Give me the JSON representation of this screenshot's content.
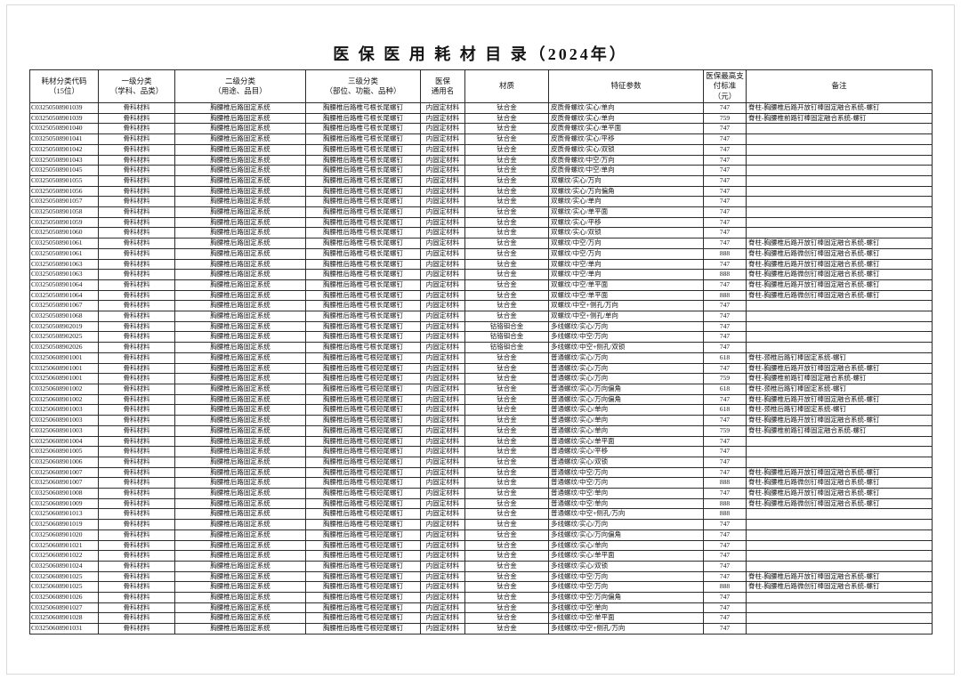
{
  "page": {
    "title": "医 保 医 用 耗 材 目 录（2024年）"
  },
  "table": {
    "columns": [
      {
        "key": "code",
        "label": "耗材分类代码\n（15位）"
      },
      {
        "key": "category-level1",
        "label": "一级分类\n（学科、品类）"
      },
      {
        "key": "category-level2",
        "label": "二级分类\n（用途、品目）"
      },
      {
        "key": "category-level3",
        "label": "三级分类\n（部位、功能、品种）"
      },
      {
        "key": "common-name",
        "label": "医保\n通用名"
      },
      {
        "key": "material",
        "label": "材质"
      },
      {
        "key": "feature-params",
        "label": "特征参数"
      },
      {
        "key": "max-pay-standard",
        "label": "医保最高支\n付标准\n（元）"
      },
      {
        "key": "remark",
        "label": "备注"
      }
    ],
    "rows": [
      [
        "C03250508901039",
        "骨科材料",
        "胸腰椎后路固定系统",
        "胸腰椎后路椎弓根长尾螺钉",
        "内固定材料",
        "钛合金",
        "皮质骨螺纹/实心/单向",
        "747",
        "脊柱-胸腰椎后路开放钉棒固定融合系统-螺钉"
      ],
      [
        "C03250508901039",
        "骨科材料",
        "胸腰椎后路固定系统",
        "胸腰椎后路椎弓根长尾螺钉",
        "内固定材料",
        "钛合金",
        "皮质骨螺纹/实心/单向",
        "759",
        "脊柱-胸腰椎前路钉棒固定融合系统-螺钉"
      ],
      [
        "C03250508901040",
        "骨科材料",
        "胸腰椎后路固定系统",
        "胸腰椎后路椎弓根长尾螺钉",
        "内固定材料",
        "钛合金",
        "皮质骨螺纹/实心/单平面",
        "747",
        ""
      ],
      [
        "C03250508901041",
        "骨科材料",
        "胸腰椎后路固定系统",
        "胸腰椎后路椎弓根长尾螺钉",
        "内固定材料",
        "钛合金",
        "皮质骨螺纹/实心/平移",
        "747",
        ""
      ],
      [
        "C03250508901042",
        "骨科材料",
        "胸腰椎后路固定系统",
        "胸腰椎后路椎弓根长尾螺钉",
        "内固定材料",
        "钛合金",
        "皮质骨螺纹/实心/双锁",
        "747",
        ""
      ],
      [
        "C03250508901043",
        "骨科材料",
        "胸腰椎后路固定系统",
        "胸腰椎后路椎弓根长尾螺钉",
        "内固定材料",
        "钛合金",
        "皮质骨螺纹/中空/万向",
        "747",
        ""
      ],
      [
        "C03250508901045",
        "骨科材料",
        "胸腰椎后路固定系统",
        "胸腰椎后路椎弓根长尾螺钉",
        "内固定材料",
        "钛合金",
        "皮质骨螺纹/中空/单向",
        "747",
        ""
      ],
      [
        "C03250508901055",
        "骨科材料",
        "胸腰椎后路固定系统",
        "胸腰椎后路椎弓根长尾螺钉",
        "内固定材料",
        "钛合金",
        "双螺纹/实心/万向",
        "747",
        ""
      ],
      [
        "C03250508901056",
        "骨科材料",
        "胸腰椎后路固定系统",
        "胸腰椎后路椎弓根长尾螺钉",
        "内固定材料",
        "钛合金",
        "双螺纹/实心/万向偏角",
        "747",
        ""
      ],
      [
        "C03250508901057",
        "骨科材料",
        "胸腰椎后路固定系统",
        "胸腰椎后路椎弓根长尾螺钉",
        "内固定材料",
        "钛合金",
        "双螺纹/实心/单向",
        "747",
        ""
      ],
      [
        "C03250508901058",
        "骨科材料",
        "胸腰椎后路固定系统",
        "胸腰椎后路椎弓根长尾螺钉",
        "内固定材料",
        "钛合金",
        "双螺纹/实心/单平面",
        "747",
        ""
      ],
      [
        "C03250508901059",
        "骨科材料",
        "胸腰椎后路固定系统",
        "胸腰椎后路椎弓根长尾螺钉",
        "内固定材料",
        "钛合金",
        "双螺纹/实心/平移",
        "747",
        ""
      ],
      [
        "C03250508901060",
        "骨科材料",
        "胸腰椎后路固定系统",
        "胸腰椎后路椎弓根长尾螺钉",
        "内固定材料",
        "钛合金",
        "双螺纹/实心/双锁",
        "747",
        ""
      ],
      [
        "C03250508901061",
        "骨科材料",
        "胸腰椎后路固定系统",
        "胸腰椎后路椎弓根长尾螺钉",
        "内固定材料",
        "钛合金",
        "双螺纹/中空/万向",
        "747",
        "脊柱-胸腰椎后路开放钉棒固定融合系统-螺钉"
      ],
      [
        "C03250508901061",
        "骨科材料",
        "胸腰椎后路固定系统",
        "胸腰椎后路椎弓根长尾螺钉",
        "内固定材料",
        "钛合金",
        "双螺纹/中空/万向",
        "888",
        "脊柱-胸腰椎后路微创钉棒固定融合系统-螺钉"
      ],
      [
        "C03250508901063",
        "骨科材料",
        "胸腰椎后路固定系统",
        "胸腰椎后路椎弓根长尾螺钉",
        "内固定材料",
        "钛合金",
        "双螺纹/中空/单向",
        "747",
        "脊柱-胸腰椎后路开放钉棒固定融合系统-螺钉"
      ],
      [
        "C03250508901063",
        "骨科材料",
        "胸腰椎后路固定系统",
        "胸腰椎后路椎弓根长尾螺钉",
        "内固定材料",
        "钛合金",
        "双螺纹/中空/单向",
        "888",
        "脊柱-胸腰椎后路微创钉棒固定融合系统-螺钉"
      ],
      [
        "C03250508901064",
        "骨科材料",
        "胸腰椎后路固定系统",
        "胸腰椎后路椎弓根长尾螺钉",
        "内固定材料",
        "钛合金",
        "双螺纹/中空/单平面",
        "747",
        "脊柱-胸腰椎后路开放钉棒固定融合系统-螺钉"
      ],
      [
        "C03250508901064",
        "骨科材料",
        "胸腰椎后路固定系统",
        "胸腰椎后路椎弓根长尾螺钉",
        "内固定材料",
        "钛合金",
        "双螺纹/中空/单平面",
        "888",
        "脊柱-胸腰椎后路微创钉棒固定融合系统-螺钉"
      ],
      [
        "C03250508901067",
        "骨科材料",
        "胸腰椎后路固定系统",
        "胸腰椎后路椎弓根长尾螺钉",
        "内固定材料",
        "钛合金",
        "双螺纹/中空+侧孔/万向",
        "747",
        ""
      ],
      [
        "C03250508901068",
        "骨科材料",
        "胸腰椎后路固定系统",
        "胸腰椎后路椎弓根长尾螺钉",
        "内固定材料",
        "钛合金",
        "双螺纹/中空+侧孔/单向",
        "747",
        ""
      ],
      [
        "C03250508902019",
        "骨科材料",
        "胸腰椎后路固定系统",
        "胸腰椎后路椎弓根长尾螺钉",
        "内固定材料",
        "钴铬钼合金",
        "多线螺纹/实心/万向",
        "747",
        ""
      ],
      [
        "C03250508902025",
        "骨科材料",
        "胸腰椎后路固定系统",
        "胸腰椎后路椎弓根长尾螺钉",
        "内固定材料",
        "钴铬钼合金",
        "多线螺纹/中空/万向",
        "747",
        ""
      ],
      [
        "C03250508902026",
        "骨科材料",
        "胸腰椎后路固定系统",
        "胸腰椎后路椎弓根长尾螺钉",
        "内固定材料",
        "钴铬钼合金",
        "多线螺纹/中空+侧孔/双锁",
        "747",
        ""
      ],
      [
        "C03250608901001",
        "骨科材料",
        "胸腰椎后路固定系统",
        "胸腰椎后路椎弓根短尾螺钉",
        "内固定材料",
        "钛合金",
        "普通螺纹/实心/万向",
        "618",
        "脊柱-颈椎后路钉棒固定系统-螺钉"
      ],
      [
        "C03250608901001",
        "骨科材料",
        "胸腰椎后路固定系统",
        "胸腰椎后路椎弓根短尾螺钉",
        "内固定材料",
        "钛合金",
        "普通螺纹/实心/万向",
        "747",
        "脊柱-胸腰椎后路开放钉棒固定融合系统-螺钉"
      ],
      [
        "C03250608901001",
        "骨科材料",
        "胸腰椎后路固定系统",
        "胸腰椎后路椎弓根短尾螺钉",
        "内固定材料",
        "钛合金",
        "普通螺纹/实心/万向",
        "759",
        "脊柱-胸腰椎前路钉棒固定融合系统-螺钉"
      ],
      [
        "C03250608901002",
        "骨科材料",
        "胸腰椎后路固定系统",
        "胸腰椎后路椎弓根短尾螺钉",
        "内固定材料",
        "钛合金",
        "普通螺纹/实心/万向偏角",
        "618",
        "脊柱-颈椎后路钉棒固定系统-螺钉"
      ],
      [
        "C03250608901002",
        "骨科材料",
        "胸腰椎后路固定系统",
        "胸腰椎后路椎弓根短尾螺钉",
        "内固定材料",
        "钛合金",
        "普通螺纹/实心/万向偏角",
        "747",
        "脊柱-胸腰椎后路开放钉棒固定融合系统-螺钉"
      ],
      [
        "C03250608901003",
        "骨科材料",
        "胸腰椎后路固定系统",
        "胸腰椎后路椎弓根短尾螺钉",
        "内固定材料",
        "钛合金",
        "普通螺纹/实心/单向",
        "618",
        "脊柱-颈椎后路钉棒固定系统-螺钉"
      ],
      [
        "C03250608901003",
        "骨科材料",
        "胸腰椎后路固定系统",
        "胸腰椎后路椎弓根短尾螺钉",
        "内固定材料",
        "钛合金",
        "普通螺纹/实心/单向",
        "747",
        "脊柱-胸腰椎后路开放钉棒固定融合系统-螺钉"
      ],
      [
        "C03250608901003",
        "骨科材料",
        "胸腰椎后路固定系统",
        "胸腰椎后路椎弓根短尾螺钉",
        "内固定材料",
        "钛合金",
        "普通螺纹/实心/单向",
        "759",
        "脊柱-胸腰椎前路钉棒固定融合系统-螺钉"
      ],
      [
        "C03250608901004",
        "骨科材料",
        "胸腰椎后路固定系统",
        "胸腰椎后路椎弓根短尾螺钉",
        "内固定材料",
        "钛合金",
        "普通螺纹/实心/单平面",
        "747",
        ""
      ],
      [
        "C03250608901005",
        "骨科材料",
        "胸腰椎后路固定系统",
        "胸腰椎后路椎弓根短尾螺钉",
        "内固定材料",
        "钛合金",
        "普通螺纹/实心/平移",
        "747",
        ""
      ],
      [
        "C03250608901006",
        "骨科材料",
        "胸腰椎后路固定系统",
        "胸腰椎后路椎弓根短尾螺钉",
        "内固定材料",
        "钛合金",
        "普通螺纹/实心/双锁",
        "747",
        ""
      ],
      [
        "C03250608901007",
        "骨科材料",
        "胸腰椎后路固定系统",
        "胸腰椎后路椎弓根短尾螺钉",
        "内固定材料",
        "钛合金",
        "普通螺纹/中空/万向",
        "747",
        "脊柱-胸腰椎后路开放钉棒固定融合系统-螺钉"
      ],
      [
        "C03250608901007",
        "骨科材料",
        "胸腰椎后路固定系统",
        "胸腰椎后路椎弓根短尾螺钉",
        "内固定材料",
        "钛合金",
        "普通螺纹/中空/万向",
        "888",
        "脊柱-胸腰椎后路微创钉棒固定融合系统-螺钉"
      ],
      [
        "C03250608901008",
        "骨科材料",
        "胸腰椎后路固定系统",
        "胸腰椎后路椎弓根短尾螺钉",
        "内固定材料",
        "钛合金",
        "普通螺纹/中空/单向",
        "747",
        "脊柱-胸腰椎后路开放钉棒固定融合系统-螺钉"
      ],
      [
        "C03250608901009",
        "骨科材料",
        "胸腰椎后路固定系统",
        "胸腰椎后路椎弓根短尾螺钉",
        "内固定材料",
        "钛合金",
        "普通螺纹/中空/单向",
        "888",
        "脊柱-胸腰椎后路微创钉棒固定融合系统-螺钉"
      ],
      [
        "C03250608901013",
        "骨科材料",
        "胸腰椎后路固定系统",
        "胸腰椎后路椎弓根短尾螺钉",
        "内固定材料",
        "钛合金",
        "普通螺纹/中空+侧孔/万向",
        "888",
        ""
      ],
      [
        "C03250608901019",
        "骨科材料",
        "胸腰椎后路固定系统",
        "胸腰椎后路椎弓根短尾螺钉",
        "内固定材料",
        "钛合金",
        "多线螺纹/实心/万向",
        "747",
        ""
      ],
      [
        "C03250608901020",
        "骨科材料",
        "胸腰椎后路固定系统",
        "胸腰椎后路椎弓根短尾螺钉",
        "内固定材料",
        "钛合金",
        "多线螺纹/实心/万向偏角",
        "747",
        ""
      ],
      [
        "C03250608901021",
        "骨科材料",
        "胸腰椎后路固定系统",
        "胸腰椎后路椎弓根短尾螺钉",
        "内固定材料",
        "钛合金",
        "多线螺纹/实心/单向",
        "747",
        ""
      ],
      [
        "C03250608901022",
        "骨科材料",
        "胸腰椎后路固定系统",
        "胸腰椎后路椎弓根短尾螺钉",
        "内固定材料",
        "钛合金",
        "多线螺纹/实心/单平面",
        "747",
        ""
      ],
      [
        "C03250608901024",
        "骨科材料",
        "胸腰椎后路固定系统",
        "胸腰椎后路椎弓根短尾螺钉",
        "内固定材料",
        "钛合金",
        "多线螺纹/实心/双锁",
        "747",
        ""
      ],
      [
        "C03250608901025",
        "骨科材料",
        "胸腰椎后路固定系统",
        "胸腰椎后路椎弓根短尾螺钉",
        "内固定材料",
        "钛合金",
        "多线螺纹/中空/万向",
        "747",
        "脊柱-胸腰椎后路开放钉棒固定融合系统-螺钉"
      ],
      [
        "C03250608901025",
        "骨科材料",
        "胸腰椎后路固定系统",
        "胸腰椎后路椎弓根短尾螺钉",
        "内固定材料",
        "钛合金",
        "多线螺纹/中空/万向",
        "888",
        "脊柱-胸腰椎后路微创钉棒固定融合系统-螺钉"
      ],
      [
        "C03250608901026",
        "骨科材料",
        "胸腰椎后路固定系统",
        "胸腰椎后路椎弓根短尾螺钉",
        "内固定材料",
        "钛合金",
        "多线螺纹/中空/万向偏角",
        "747",
        ""
      ],
      [
        "C03250608901027",
        "骨科材料",
        "胸腰椎后路固定系统",
        "胸腰椎后路椎弓根短尾螺钉",
        "内固定材料",
        "钛合金",
        "多线螺纹/中空/单向",
        "747",
        ""
      ],
      [
        "C03250608901028",
        "骨科材料",
        "胸腰椎后路固定系统",
        "胸腰椎后路椎弓根短尾螺钉",
        "内固定材料",
        "钛合金",
        "多线螺纹/中空/单平面",
        "747",
        ""
      ],
      [
        "C03250608901031",
        "骨科材料",
        "胸腰椎后路固定系统",
        "胸腰椎后路椎弓根短尾螺钉",
        "内固定材料",
        "钛合金",
        "多线螺纹/中空+侧孔/万向",
        "747",
        ""
      ]
    ]
  }
}
